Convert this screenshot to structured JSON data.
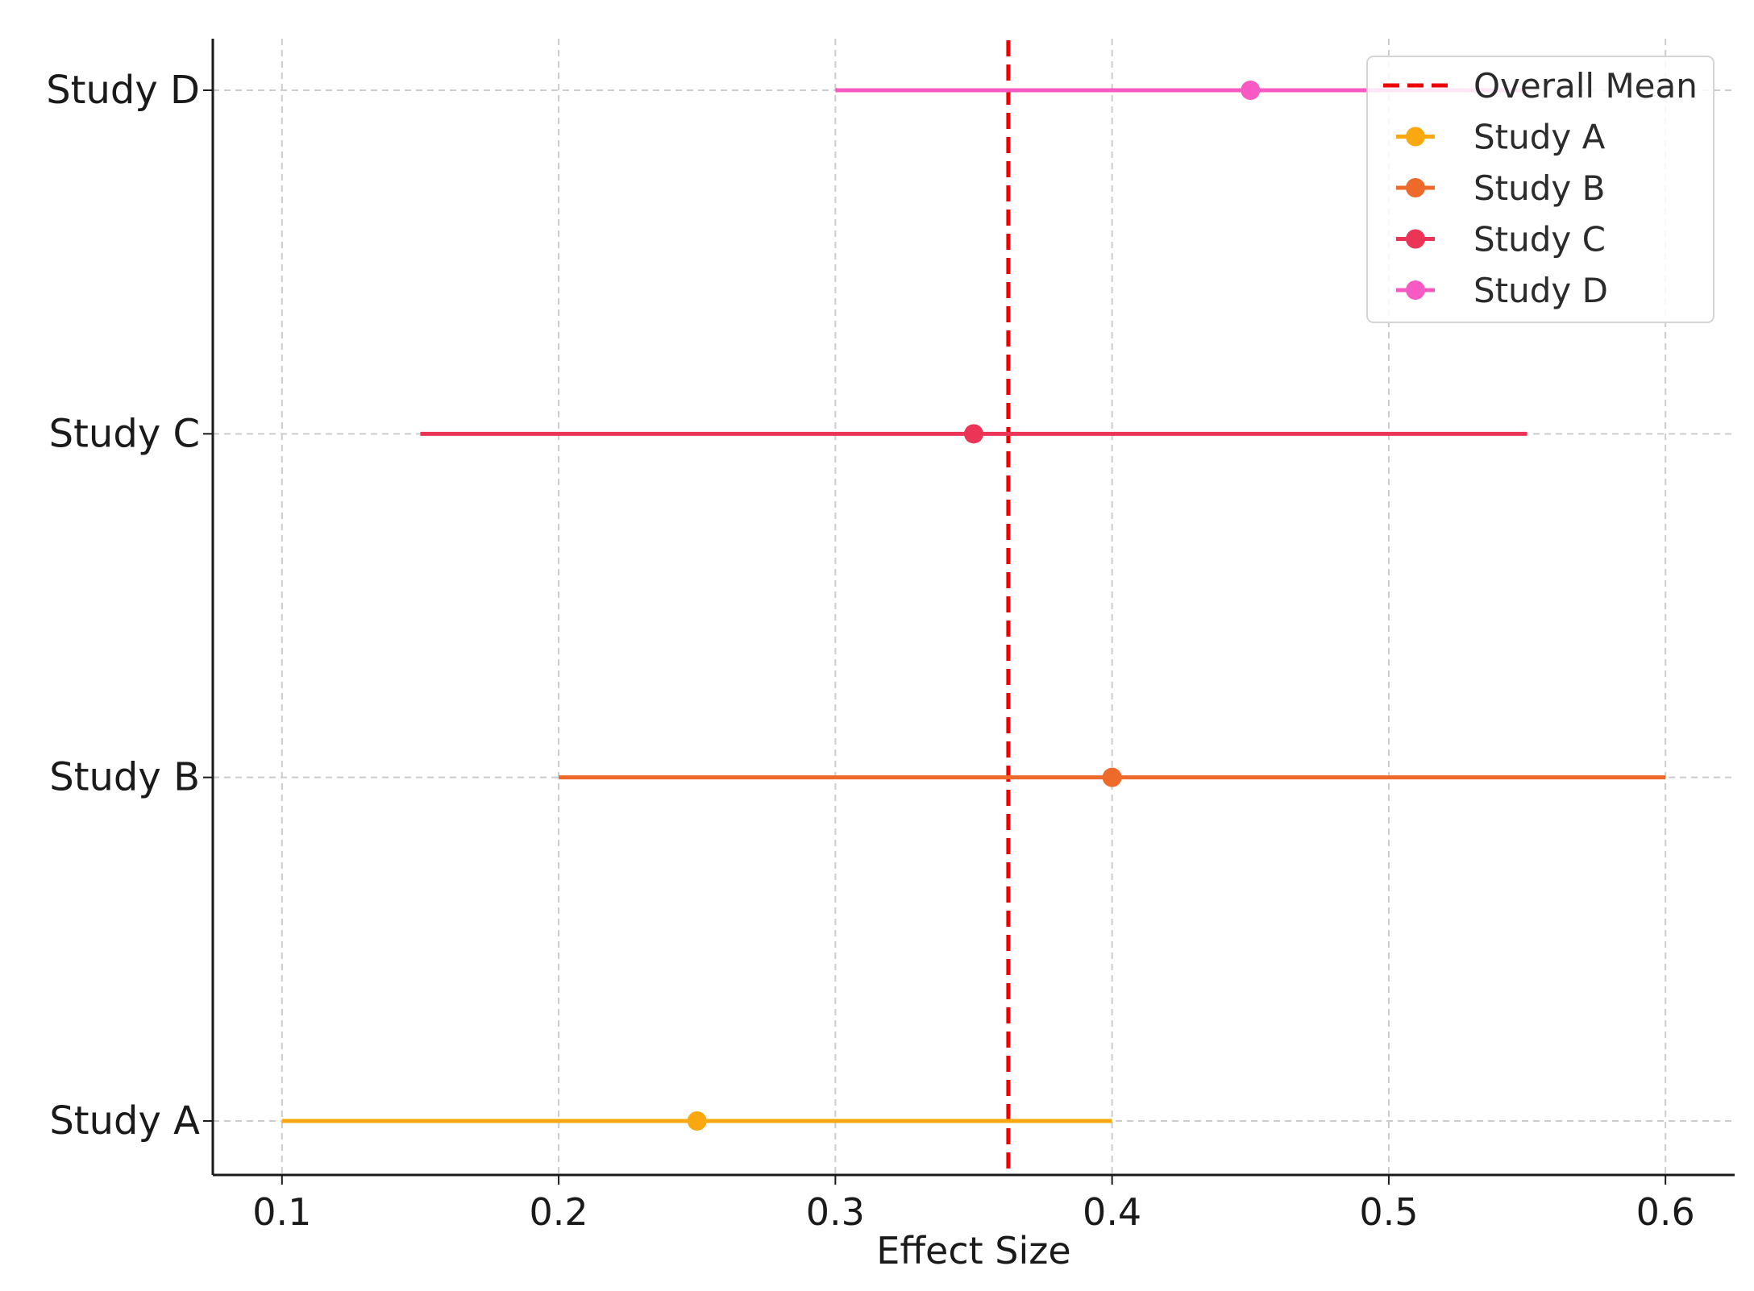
{
  "chart_data": {
    "type": "forest",
    "xlabel": "Effect Size",
    "ylabel": "",
    "title": "",
    "xlim": [
      0.075,
      0.625
    ],
    "xticks": [
      0.1,
      0.2,
      0.3,
      0.4,
      0.5,
      0.6
    ],
    "xtick_labels": [
      "0.1",
      "0.2",
      "0.3",
      "0.4",
      "0.5",
      "0.6"
    ],
    "grid": true,
    "legend_position": "top-right",
    "overall_mean": {
      "label": "Overall Mean",
      "value": 0.3625,
      "color": "#ee0000"
    },
    "studies": [
      {
        "name": "Study A",
        "estimate": 0.25,
        "ci_low": 0.1,
        "ci_high": 0.4,
        "color": "#f9a90f"
      },
      {
        "name": "Study B",
        "estimate": 0.4,
        "ci_low": 0.2,
        "ci_high": 0.6,
        "color": "#ee6a2a"
      },
      {
        "name": "Study C",
        "estimate": 0.35,
        "ci_low": 0.15,
        "ci_high": 0.55,
        "color": "#ec3556"
      },
      {
        "name": "Study D",
        "estimate": 0.45,
        "ci_low": 0.3,
        "ci_high": 0.55,
        "color": "#f75bc3"
      }
    ]
  }
}
